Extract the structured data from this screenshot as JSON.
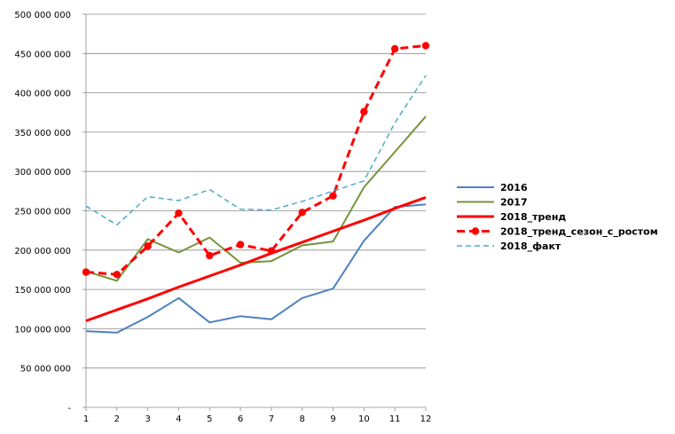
{
  "chart_data": {
    "type": "line",
    "categories": [
      "1",
      "2",
      "3",
      "4",
      "5",
      "6",
      "7",
      "8",
      "9",
      "10",
      "11",
      "12"
    ],
    "ylim": [
      0,
      500000000
    ],
    "yticks": [
      {
        "value": 0,
        "label": "-"
      },
      {
        "value": 50000000,
        "label": "50 000 000"
      },
      {
        "value": 100000000,
        "label": "100 000 000"
      },
      {
        "value": 150000000,
        "label": "150 000 000"
      },
      {
        "value": 200000000,
        "label": "200 000 000"
      },
      {
        "value": 250000000,
        "label": "250 000 000"
      },
      {
        "value": 300000000,
        "label": "300 000 000"
      },
      {
        "value": 350000000,
        "label": "350 000 000"
      },
      {
        "value": 400000000,
        "label": "400 000 000"
      },
      {
        "value": 450000000,
        "label": "450 000 000"
      },
      {
        "value": 500000000,
        "label": "500 000 000"
      }
    ],
    "grid": true,
    "legend_position": "right",
    "series": [
      {
        "name": "2016",
        "color": "#4f81bd",
        "dash": "solid",
        "marker": false,
        "values": [
          97000000,
          95000000,
          115000000,
          139000000,
          108000000,
          116000000,
          112000000,
          139000000,
          151000000,
          212000000,
          255000000,
          258000000
        ]
      },
      {
        "name": "2017",
        "color": "#77933c",
        "dash": "solid",
        "marker": false,
        "values": [
          173000000,
          161000000,
          214000000,
          197000000,
          216000000,
          184000000,
          186000000,
          206000000,
          211000000,
          280000000,
          325000000,
          370000000
        ]
      },
      {
        "name": "2018_тренд",
        "color": "#ff0000",
        "dash": "solid",
        "marker": false,
        "values": [
          110000000,
          124000000,
          138000000,
          153000000,
          167000000,
          181000000,
          196000000,
          210000000,
          224000000,
          238000000,
          253000000,
          267000000
        ]
      },
      {
        "name": "2018_тренд_сезон_с_ростом",
        "color": "#ff0000",
        "dash": "dashed",
        "marker": true,
        "values": [
          172000000,
          169000000,
          205000000,
          247000000,
          193000000,
          207000000,
          199000000,
          248000000,
          269000000,
          376000000,
          456000000,
          460000000
        ]
      },
      {
        "name": "2018_факт",
        "color": "#4bacc6",
        "dash": "dashed-thin",
        "marker": false,
        "values": [
          256000000,
          232000000,
          268000000,
          263000000,
          277000000,
          252000000,
          251000000,
          262000000,
          275000000,
          288000000,
          362000000,
          422000000
        ]
      }
    ]
  }
}
